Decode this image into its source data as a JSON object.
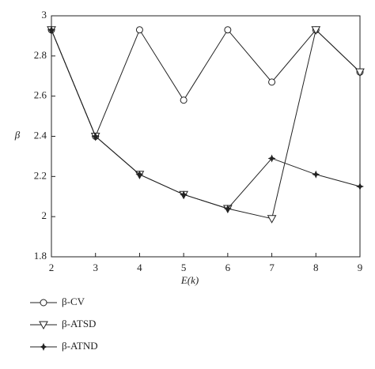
{
  "chart_data": {
    "type": "line",
    "x_label": "E(k)",
    "y_label": "β",
    "x": [
      2,
      3,
      4,
      5,
      6,
      7,
      8,
      9
    ],
    "xlim": [
      2,
      9
    ],
    "xticks": [
      2,
      3,
      4,
      5,
      6,
      7,
      8,
      9
    ],
    "ylim": [
      1.8,
      3
    ],
    "yticks": [
      1.8,
      2,
      2.2,
      2.4,
      2.6,
      2.8,
      3
    ],
    "series": [
      {
        "name": "β-CV",
        "color": "#222222",
        "marker": "circle",
        "values": [
          2.93,
          2.4,
          2.93,
          2.58,
          2.93,
          2.67,
          2.93,
          2.72
        ]
      },
      {
        "name": "β-ATSD",
        "color": "#222222",
        "marker": "triangle-down",
        "values": [
          2.93,
          2.4,
          2.21,
          2.11,
          2.04,
          1.99,
          2.93,
          2.72
        ]
      },
      {
        "name": "β-ATND",
        "color": "#222222",
        "marker": "star",
        "values": [
          2.93,
          2.4,
          2.21,
          2.11,
          2.04,
          2.29,
          2.21,
          2.15
        ]
      }
    ]
  }
}
